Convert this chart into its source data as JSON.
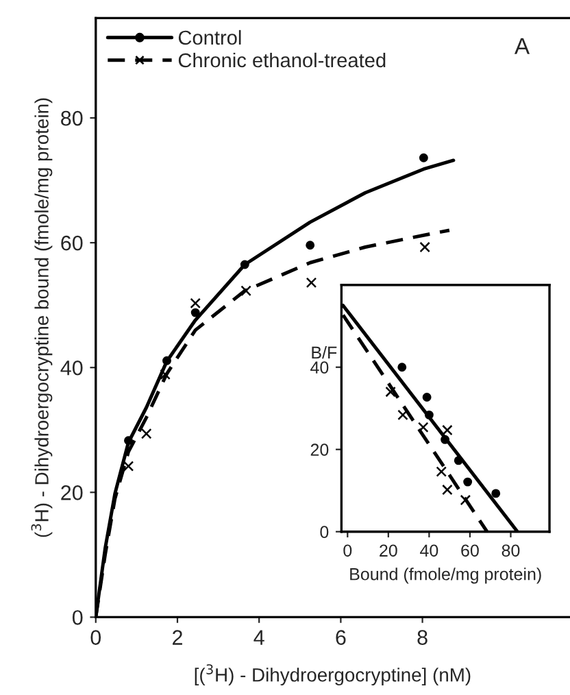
{
  "chart_data": [
    {
      "type": "scatter",
      "xlabel": "[($^{3}$H) - Dihydroergocryptine] (nM)",
      "ylabel": "($^{3}$H) - Dihydroergocryptine bound (fmole/mg protein)",
      "annotations": [
        "A"
      ],
      "xlim": [
        0,
        11.6
      ],
      "ylim": [
        0,
        96
      ],
      "xticks": [
        0,
        2,
        4,
        6,
        8
      ],
      "yticks": [
        0,
        20,
        40,
        60,
        80
      ],
      "grid": false,
      "legend": "top left",
      "series": [
        {
          "marker": "circle",
          "color": "#000000",
          "x": [
            0.8,
            1.74,
            2.44,
            3.65,
            5.25,
            8.03
          ],
          "values": [
            28.3,
            41.1,
            48.8,
            56.5,
            59.6,
            73.6
          ]
        },
        {
          "name": "Control",
          "type": "line",
          "line_style": "solid",
          "color": "#000000",
          "x": [
            0,
            0.23,
            0.47,
            0.8,
            1.24,
            1.74,
            2.44,
            3.65,
            5.25,
            6.6,
            8.03,
            8.76
          ],
          "values": [
            0,
            11,
            19.8,
            28,
            33.6,
            41,
            47.6,
            56.5,
            63.3,
            68,
            71.8,
            73.2
          ]
        },
        {
          "marker": "cross",
          "color": "#000000",
          "x": [
            0.8,
            1.24,
            1.7,
            2.44,
            3.68,
            5.28,
            8.06
          ],
          "values": [
            24.2,
            29.4,
            38.9,
            50.3,
            52.3,
            53.6,
            59.3
          ]
        },
        {
          "name": "Chronic ethanol-treated",
          "type": "line",
          "line_style": "dashed",
          "color": "#000000",
          "x": [
            0,
            0.23,
            0.47,
            0.8,
            1.24,
            1.74,
            2.44,
            3.65,
            5.25,
            6.6,
            8.03,
            8.66
          ],
          "values": [
            0,
            10,
            19,
            26.5,
            32,
            39,
            46,
            52.3,
            56.8,
            59.3,
            61.2,
            62
          ]
        }
      ]
    },
    {
      "type": "scatter",
      "xlabel": "Bound (fmole/mg protein)",
      "ylabel": "B/F",
      "xlim": [
        -3,
        99
      ],
      "ylim": [
        0,
        60
      ],
      "xticks": [
        0,
        20,
        40,
        60,
        80
      ],
      "yticks": [
        0,
        20,
        40
      ],
      "grid": false,
      "legend": false,
      "series": [
        {
          "marker": "circle",
          "color": "#000000",
          "x": [
            26.7,
            38.9,
            40,
            47.8,
            54.4,
            58.9,
            72.7
          ],
          "values": [
            40,
            32.7,
            28.4,
            22.4,
            17.3,
            12.1,
            9.3
          ]
        },
        {
          "type": "line",
          "line_style": "solid",
          "color": "#000000",
          "x": [
            -2.2,
            83.3
          ],
          "values": [
            55,
            0
          ]
        },
        {
          "marker": "cross",
          "color": "#000000",
          "x": [
            21.1,
            27.1,
            37.1,
            48.9,
            46,
            48.9,
            57.8
          ],
          "values": [
            34,
            28.4,
            25.4,
            24.7,
            14.6,
            10.2,
            7.7
          ]
        },
        {
          "type": "line",
          "line_style": "dashed",
          "color": "#000000",
          "x": [
            -2.2,
            68.4
          ],
          "values": [
            52.7,
            0
          ]
        }
      ]
    }
  ]
}
